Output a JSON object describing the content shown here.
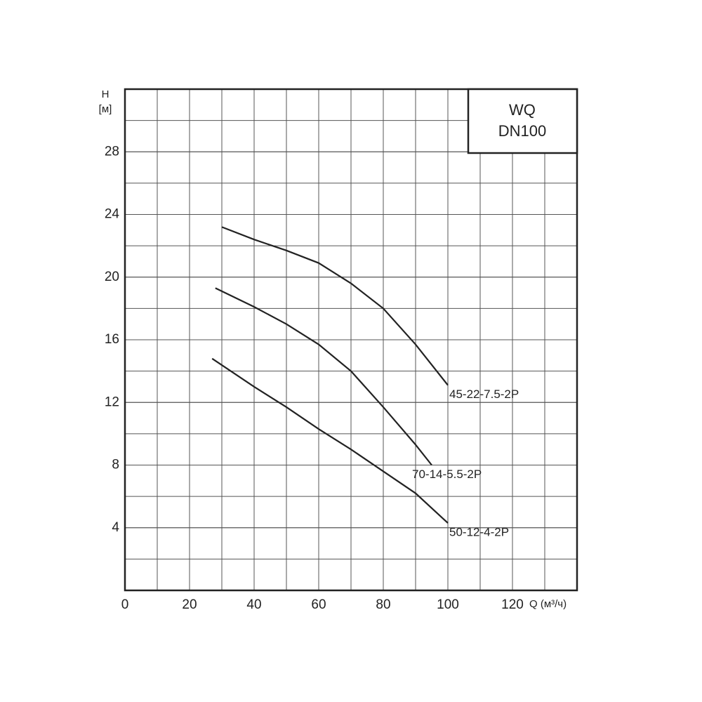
{
  "chart_data": {
    "type": "line",
    "title": "WQ",
    "subtitle": "DN100",
    "y_label": "H",
    "y_unit": "[м]",
    "x_label": "Q (м³/ч)",
    "xlim": [
      0,
      140
    ],
    "ylim": [
      0,
      32
    ],
    "xticks": [
      0,
      20,
      40,
      60,
      80,
      100,
      120
    ],
    "yticks": [
      4,
      8,
      12,
      16,
      20,
      24,
      28
    ],
    "grid": true,
    "minor_grid": true,
    "series": [
      {
        "name": "45-22-7.5-2P",
        "color": "#222222",
        "x": [
          30,
          40,
          50,
          60,
          70,
          80,
          90,
          100
        ],
        "values": [
          23.2,
          22.4,
          21.7,
          20.9,
          19.6,
          18.0,
          15.7,
          13.1
        ]
      },
      {
        "name": "70-14-5.5-2P",
        "color": "#222222",
        "x": [
          28,
          40,
          50,
          60,
          70,
          80,
          90,
          95
        ],
        "values": [
          19.3,
          18.1,
          17.0,
          15.7,
          14.0,
          11.7,
          9.3,
          8.0
        ]
      },
      {
        "name": "50-12-4-2P",
        "color": "#222222",
        "x": [
          27,
          40,
          50,
          60,
          70,
          80,
          90,
          100
        ],
        "values": [
          14.8,
          13.0,
          11.7,
          10.3,
          9.0,
          7.6,
          6.2,
          4.3
        ]
      }
    ]
  }
}
